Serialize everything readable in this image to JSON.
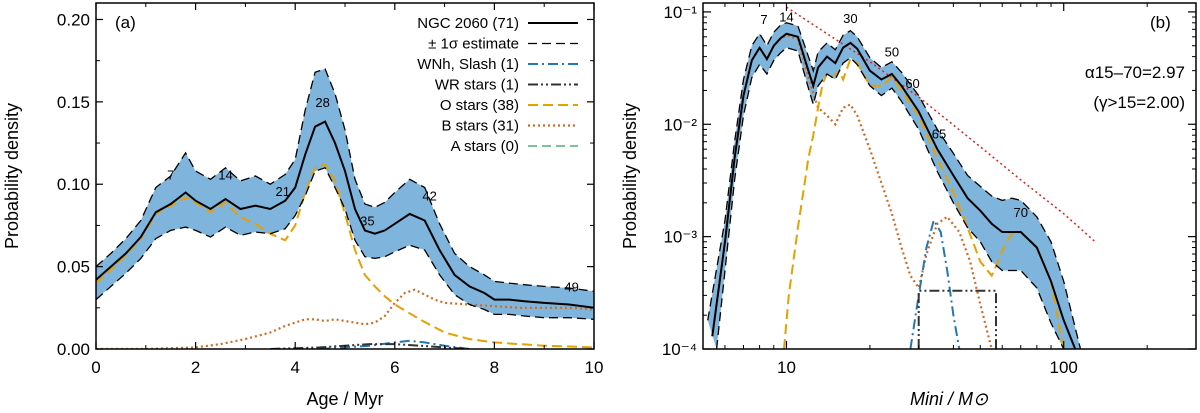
{
  "chart_data": [
    {
      "type": "line",
      "panel": "(a)",
      "xlabel": "Age / Myr",
      "ylabel": "Probability density",
      "xlim": [
        0,
        10
      ],
      "ylim": [
        0,
        0.21
      ],
      "xticks": [
        "0",
        "2",
        "4",
        "6",
        "8",
        "10"
      ],
      "yticks": [
        "0.00",
        "0.05",
        "0.10",
        "0.15",
        "0.20"
      ],
      "legend": [
        {
          "label": "NGC 2060 (71)",
          "color": "#000000",
          "style": "solid"
        },
        {
          "label": "± 1σ estimate",
          "color": "#000000",
          "style": "dashed"
        },
        {
          "label": "WNh, Slash (1)",
          "color": "#1f77b4",
          "style": "dashdot"
        },
        {
          "label": "WR stars (1)",
          "color": "#333333",
          "style": "dashdotdot"
        },
        {
          "label": "O stars (38)",
          "color": "#e6a000",
          "style": "longdash"
        },
        {
          "label": "B stars (31)",
          "color": "#d2691e",
          "style": "dotted"
        },
        {
          "label": "A stars (0)",
          "color": "#2ca05a",
          "style": "dashed"
        }
      ],
      "annotations": [
        {
          "text": "7",
          "x": 1.5,
          "y": 0.103
        },
        {
          "text": "14",
          "x": 2.6,
          "y": 0.103
        },
        {
          "text": "21",
          "x": 3.75,
          "y": 0.093
        },
        {
          "text": "28",
          "x": 4.55,
          "y": 0.147
        },
        {
          "text": "35",
          "x": 5.45,
          "y": 0.075
        },
        {
          "text": "42",
          "x": 6.7,
          "y": 0.09
        },
        {
          "text": "49",
          "x": 9.55,
          "y": 0.035
        }
      ],
      "series": [
        {
          "name": "NGC 2060 (71)",
          "x": [
            0,
            0.3,
            0.6,
            0.9,
            1.2,
            1.5,
            1.8,
            2.0,
            2.3,
            2.6,
            2.9,
            3.2,
            3.5,
            3.8,
            4.0,
            4.2,
            4.4,
            4.6,
            4.8,
            5.0,
            5.2,
            5.4,
            5.6,
            5.8,
            6.0,
            6.3,
            6.6,
            6.9,
            7.2,
            7.5,
            7.8,
            8.0,
            8.3,
            8.6,
            9.0,
            9.5,
            10.0
          ],
          "y": [
            0.042,
            0.05,
            0.058,
            0.068,
            0.083,
            0.088,
            0.095,
            0.09,
            0.085,
            0.091,
            0.085,
            0.087,
            0.085,
            0.09,
            0.098,
            0.118,
            0.135,
            0.138,
            0.125,
            0.108,
            0.085,
            0.072,
            0.07,
            0.072,
            0.076,
            0.082,
            0.078,
            0.06,
            0.045,
            0.038,
            0.034,
            0.03,
            0.03,
            0.029,
            0.028,
            0.027,
            0.025
          ]
        },
        {
          "name": "+1σ",
          "x": [
            0,
            0.3,
            0.6,
            0.9,
            1.2,
            1.5,
            1.8,
            2.0,
            2.3,
            2.6,
            2.9,
            3.2,
            3.5,
            3.8,
            4.0,
            4.2,
            4.4,
            4.6,
            4.8,
            5.0,
            5.2,
            5.4,
            5.6,
            5.8,
            6.0,
            6.3,
            6.6,
            6.9,
            7.2,
            7.5,
            7.8,
            8.0,
            8.3,
            8.6,
            9.0,
            9.5,
            10.0
          ],
          "y": [
            0.05,
            0.058,
            0.067,
            0.078,
            0.098,
            0.105,
            0.119,
            0.108,
            0.103,
            0.11,
            0.102,
            0.105,
            0.1,
            0.106,
            0.115,
            0.145,
            0.168,
            0.17,
            0.155,
            0.133,
            0.103,
            0.088,
            0.086,
            0.089,
            0.095,
            0.103,
            0.098,
            0.076,
            0.058,
            0.05,
            0.045,
            0.041,
            0.04,
            0.039,
            0.038,
            0.037,
            0.035
          ]
        },
        {
          "name": "-1σ",
          "x": [
            0,
            0.3,
            0.6,
            0.9,
            1.2,
            1.5,
            1.8,
            2.0,
            2.3,
            2.6,
            2.9,
            3.2,
            3.5,
            3.8,
            4.0,
            4.2,
            4.4,
            4.6,
            4.8,
            5.0,
            5.2,
            5.4,
            5.6,
            5.8,
            6.0,
            6.3,
            6.6,
            6.9,
            7.2,
            7.5,
            7.8,
            8.0,
            8.3,
            8.6,
            9.0,
            9.5,
            10.0
          ],
          "y": [
            0.03,
            0.038,
            0.046,
            0.055,
            0.067,
            0.072,
            0.074,
            0.072,
            0.068,
            0.074,
            0.069,
            0.071,
            0.07,
            0.073,
            0.081,
            0.093,
            0.108,
            0.11,
            0.098,
            0.085,
            0.066,
            0.056,
            0.055,
            0.056,
            0.059,
            0.063,
            0.06,
            0.045,
            0.033,
            0.027,
            0.024,
            0.021,
            0.021,
            0.02,
            0.019,
            0.019,
            0.018
          ]
        },
        {
          "name": "O stars (38)",
          "x": [
            0,
            0.3,
            0.6,
            0.9,
            1.2,
            1.5,
            1.8,
            2.0,
            2.3,
            2.6,
            2.9,
            3.2,
            3.5,
            3.8,
            4.0,
            4.2,
            4.4,
            4.6,
            4.8,
            5.0,
            5.2,
            5.4,
            5.6,
            5.8,
            6.0,
            6.5,
            7.0,
            7.5,
            8.0,
            8.5,
            9.0,
            9.5,
            10.0
          ],
          "y": [
            0.04,
            0.048,
            0.057,
            0.067,
            0.082,
            0.087,
            0.092,
            0.089,
            0.083,
            0.089,
            0.08,
            0.076,
            0.07,
            0.066,
            0.075,
            0.095,
            0.11,
            0.112,
            0.102,
            0.082,
            0.06,
            0.045,
            0.038,
            0.032,
            0.027,
            0.018,
            0.01,
            0.006,
            0.004,
            0.003,
            0.002,
            0.0015,
            0.001
          ]
        },
        {
          "name": "B stars (31)",
          "x": [
            0,
            1.0,
            2.0,
            2.5,
            3.0,
            3.5,
            3.8,
            4.0,
            4.2,
            4.4,
            4.6,
            4.8,
            5.0,
            5.2,
            5.4,
            5.6,
            5.8,
            6.0,
            6.2,
            6.4,
            6.6,
            6.8,
            7.0,
            7.5,
            8.0,
            8.5,
            9.0,
            9.5,
            10.0
          ],
          "y": [
            0.0,
            0.0,
            0.001,
            0.003,
            0.006,
            0.01,
            0.014,
            0.016,
            0.018,
            0.018,
            0.017,
            0.018,
            0.017,
            0.016,
            0.015,
            0.016,
            0.02,
            0.028,
            0.034,
            0.036,
            0.033,
            0.03,
            0.028,
            0.027,
            0.026,
            0.025,
            0.025,
            0.025,
            0.024
          ]
        },
        {
          "name": "WNh, Slash (1)",
          "x": [
            4.5,
            5.0,
            5.5,
            6.0,
            6.3,
            6.6,
            7.0,
            7.5
          ],
          "y": [
            0.0,
            0.001,
            0.002,
            0.004,
            0.005,
            0.004,
            0.002,
            0.0
          ]
        },
        {
          "name": "WR stars (1)",
          "x": [
            3.5,
            4.0,
            4.5,
            5.0,
            5.5,
            6.0,
            6.5,
            7.0,
            7.5
          ],
          "y": [
            0.0,
            0.0005,
            0.001,
            0.002,
            0.003,
            0.003,
            0.002,
            0.001,
            0.0
          ]
        }
      ]
    },
    {
      "type": "line",
      "panel": "(b)",
      "xlabel": "Mini / M⊙",
      "xlabel_main": "M",
      "xlabel_sub1": "ini",
      "xlabel_mid": " / M",
      "xlabel_sub2": "⊙",
      "ylabel": "Probability density",
      "xscale": "log",
      "yscale": "log",
      "xlim": [
        5,
        300
      ],
      "ylim": [
        0.0001,
        0.12
      ],
      "xticks": [
        "10",
        "100"
      ],
      "yticks": [
        "10⁻⁴",
        "10⁻³",
        "10⁻²",
        "10⁻¹"
      ],
      "alpha_text": "α15–70=2.97",
      "gamma_text": "(γ>15=2.00)",
      "annotations": [
        {
          "text": "7",
          "x": 8.3,
          "y": 0.078
        },
        {
          "text": "14",
          "x": 10.0,
          "y": 0.082
        },
        {
          "text": "30",
          "x": 17.0,
          "y": 0.08
        },
        {
          "text": "50",
          "x": 24.0,
          "y": 0.04
        },
        {
          "text": "60",
          "x": 28.5,
          "y": 0.021
        },
        {
          "text": "65",
          "x": 35.5,
          "y": 0.0075
        },
        {
          "text": "70",
          "x": 70.0,
          "y": 0.0015
        }
      ],
      "series": [
        {
          "name": "total",
          "x": [
            5.4,
            6.0,
            6.5,
            7.0,
            7.5,
            8.0,
            8.5,
            9.0,
            9.5,
            10.0,
            11.0,
            12.0,
            12.5,
            13.0,
            14.0,
            15.0,
            16.0,
            17.0,
            18.0,
            20.0,
            22.0,
            24.0,
            26.0,
            30.0,
            35.0,
            40.0,
            45.0,
            50.0,
            55.0,
            60.0,
            65.0,
            70.0,
            80.0,
            90.0,
            100.0,
            110.0
          ],
          "y": [
            0.00013,
            0.0009,
            0.005,
            0.018,
            0.037,
            0.048,
            0.038,
            0.05,
            0.058,
            0.064,
            0.06,
            0.03,
            0.022,
            0.032,
            0.04,
            0.035,
            0.048,
            0.053,
            0.047,
            0.03,
            0.025,
            0.028,
            0.022,
            0.013,
            0.006,
            0.0035,
            0.0022,
            0.0017,
            0.0013,
            0.0011,
            0.0011,
            0.0011,
            0.0008,
            0.0004,
            0.00018,
            0.0001
          ]
        },
        {
          "name": "upper",
          "x": [
            5.2,
            6.0,
            6.5,
            7.0,
            7.5,
            8.0,
            8.5,
            9.0,
            9.5,
            10.0,
            11.0,
            12.0,
            12.5,
            13.0,
            14.0,
            15.0,
            16.0,
            17.0,
            18.0,
            20.0,
            22.0,
            24.0,
            26.0,
            30.0,
            35.0,
            40.0,
            45.0,
            50.0,
            55.0,
            60.0,
            65.0,
            70.0,
            80.0,
            90.0,
            100.0,
            115.0
          ],
          "y": [
            0.00018,
            0.0014,
            0.007,
            0.025,
            0.05,
            0.064,
            0.05,
            0.066,
            0.076,
            0.08,
            0.075,
            0.04,
            0.03,
            0.044,
            0.053,
            0.046,
            0.062,
            0.068,
            0.06,
            0.039,
            0.032,
            0.036,
            0.029,
            0.018,
            0.009,
            0.0055,
            0.0035,
            0.0028,
            0.0023,
            0.0021,
            0.0022,
            0.0021,
            0.0015,
            0.0009,
            0.0004,
            0.0001
          ]
        },
        {
          "name": "lower",
          "x": [
            5.6,
            6.0,
            6.5,
            7.0,
            7.5,
            8.0,
            8.5,
            9.0,
            9.5,
            10.0,
            11.0,
            12.0,
            12.5,
            13.0,
            14.0,
            15.0,
            16.0,
            17.0,
            18.0,
            20.0,
            22.0,
            24.0,
            26.0,
            30.0,
            35.0,
            40.0,
            45.0,
            50.0,
            55.0,
            60.0,
            65.0,
            70.0,
            80.0,
            90.0,
            100.0
          ],
          "y": [
            0.0001,
            0.0005,
            0.0032,
            0.012,
            0.026,
            0.034,
            0.028,
            0.037,
            0.043,
            0.048,
            0.045,
            0.021,
            0.015,
            0.022,
            0.028,
            0.025,
            0.035,
            0.039,
            0.034,
            0.022,
            0.018,
            0.021,
            0.016,
            0.009,
            0.0038,
            0.002,
            0.0012,
            0.0009,
            0.0006,
            0.0005,
            0.0005,
            0.0005,
            0.00035,
            0.00017,
            0.0001
          ]
        },
        {
          "name": "O stars",
          "x": [
            9.8,
            10.2,
            11.0,
            12.0,
            12.5,
            13.0,
            13.5,
            14.0,
            15.0,
            15.5,
            16.0,
            17.0,
            18.0,
            20.0,
            22.0,
            24.0,
            26.0,
            30.0,
            35.0,
            40.0,
            45.0,
            50.0,
            55.0,
            58.0,
            62.0,
            66.0,
            70.0,
            80.0,
            90.0,
            100.0
          ],
          "y": [
            0.0001,
            0.0003,
            0.0012,
            0.005,
            0.008,
            0.014,
            0.023,
            0.028,
            0.027,
            0.03,
            0.025,
            0.038,
            0.035,
            0.022,
            0.022,
            0.026,
            0.02,
            0.012,
            0.005,
            0.0025,
            0.0012,
            0.0006,
            0.00045,
            0.0006,
            0.0009,
            0.0011,
            0.0011,
            0.0008,
            0.0004,
            0.0001
          ]
        },
        {
          "name": "B stars",
          "x": [
            5.4,
            6.0,
            6.5,
            7.0,
            7.5,
            8.0,
            8.5,
            9.0,
            9.5,
            10.0,
            11.0,
            12.0,
            13.0,
            14.0,
            15.0,
            16.0,
            17.0,
            18.0,
            20.0,
            22.0,
            24.0,
            26.0,
            28.0,
            30.0,
            32.0,
            35.0,
            38.0,
            42.0,
            46.0,
            50.0,
            55.0
          ],
          "y": [
            0.00013,
            0.0009,
            0.005,
            0.018,
            0.037,
            0.048,
            0.038,
            0.05,
            0.057,
            0.062,
            0.057,
            0.026,
            0.014,
            0.012,
            0.01,
            0.014,
            0.015,
            0.012,
            0.006,
            0.003,
            0.0016,
            0.0008,
            0.00045,
            0.00035,
            0.0007,
            0.0013,
            0.0015,
            0.0011,
            0.0006,
            0.00025,
            0.0001
          ]
        },
        {
          "name": "WNh",
          "x": [
            28.0,
            30.0,
            32.0,
            34.0,
            36.0,
            38.0,
            40.0,
            42.0
          ],
          "y": [
            0.0001,
            0.0003,
            0.0008,
            0.0014,
            0.0011,
            0.0005,
            0.0002,
            0.0001
          ]
        },
        {
          "name": "WR box",
          "x": [
            30.0,
            30.0,
            57.0,
            57.0
          ],
          "y": [
            0.0001,
            0.00033,
            0.00033,
            0.0001
          ]
        },
        {
          "name": "power law",
          "x": [
            10.0,
            20.0,
            30.0,
            50.0,
            70.0,
            100.0,
            130.0
          ],
          "y": [
            0.11,
            0.036,
            0.0175,
            0.0063,
            0.0032,
            0.0016,
            0.0009
          ]
        }
      ]
    }
  ]
}
